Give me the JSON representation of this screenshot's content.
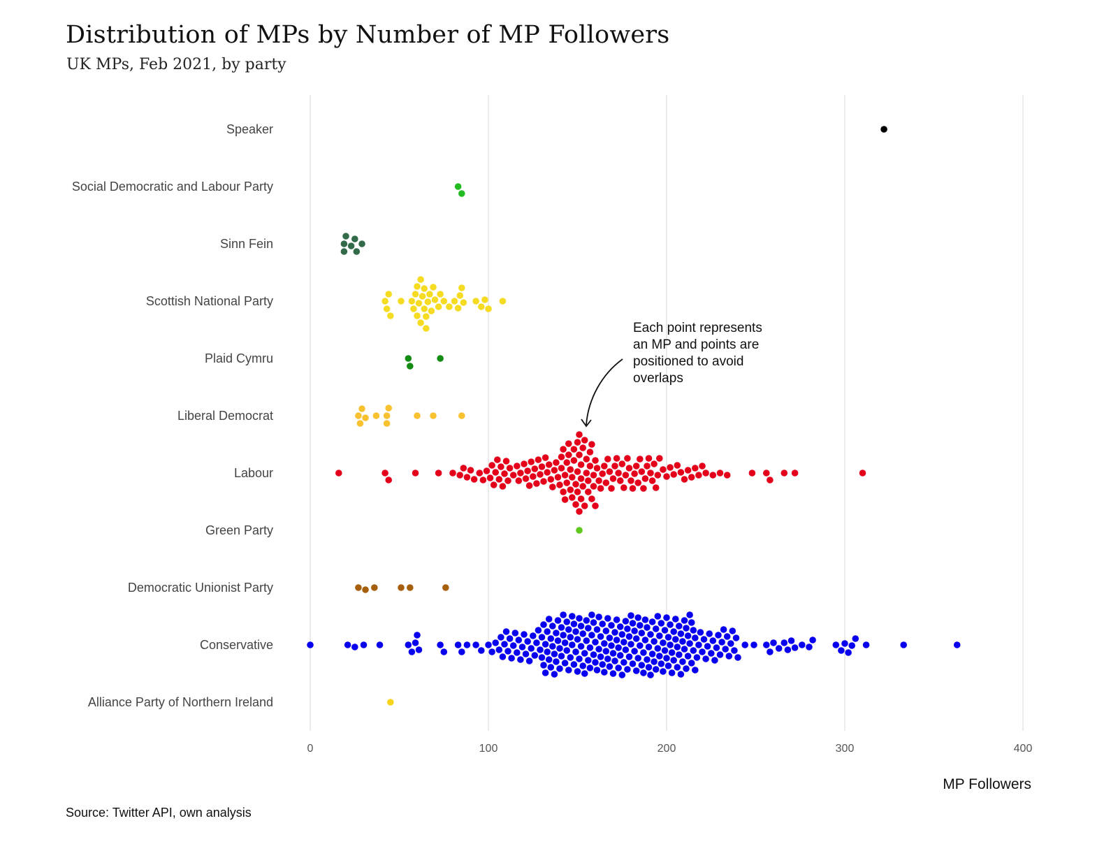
{
  "title": "Distribution of MPs by Number of MP Followers",
  "subtitle": "UK MPs, Feb 2021, by party",
  "source": "Source: Twitter API, own analysis",
  "annotation": [
    "Each point represents",
    "an MP and points are",
    "positioned to avoid",
    "overlaps"
  ],
  "chart_data": {
    "type": "scatter",
    "title": "Distribution of MPs by Number of MP Followers",
    "subtitle": "UK MPs, Feb 2021, by party",
    "xlabel": "MP Followers",
    "ylabel": "",
    "xlim": [
      0,
      400
    ],
    "xticks": [
      0,
      100,
      200,
      300,
      400
    ],
    "grid": "vertical",
    "categories": [
      "Speaker",
      "Social Democratic and Labour Party",
      "Sinn Fein",
      "Scottish National Party",
      "Plaid Cymru",
      "Liberal Democrat",
      "Labour",
      "Green Party",
      "Democratic Unionist Party",
      "Conservative",
      "Alliance Party of Northern Ireland"
    ],
    "series": [
      {
        "category": "Speaker",
        "color": "#000000",
        "values": [
          322
        ]
      },
      {
        "category": "Social Democratic and Labour Party",
        "color": "#22bb22",
        "values": [
          83,
          85
        ]
      },
      {
        "category": "Sinn Fein",
        "color": "#326a4a",
        "values": [
          19,
          19,
          20,
          23,
          25,
          26,
          29
        ]
      },
      {
        "category": "Scottish National Party",
        "color": "#f5dc23",
        "values": [
          42,
          43,
          44,
          45,
          51,
          57,
          58,
          59,
          60,
          60,
          61,
          62,
          62,
          63,
          64,
          64,
          65,
          65,
          66,
          67,
          68,
          69,
          70,
          72,
          73,
          75,
          78,
          81,
          83,
          84,
          85,
          86,
          93,
          96,
          98,
          100,
          108
        ]
      },
      {
        "category": "Plaid Cymru",
        "color": "#148c14",
        "values": [
          55,
          56,
          73
        ]
      },
      {
        "category": "Liberal Democrat",
        "color": "#f8c130",
        "values": [
          27,
          28,
          29,
          31,
          37,
          43,
          43,
          44,
          60,
          69,
          85
        ]
      },
      {
        "category": "Labour",
        "color": "#e4001a",
        "values": [
          16,
          42,
          44,
          59,
          72,
          80,
          84,
          86,
          88,
          90,
          92,
          95,
          97,
          99,
          101,
          102,
          103,
          104,
          105,
          106,
          107,
          108,
          109,
          110,
          111,
          112,
          114,
          116,
          117,
          118,
          120,
          121,
          122,
          123,
          124,
          125,
          126,
          127,
          128,
          129,
          130,
          131,
          132,
          133,
          134,
          135,
          136,
          137,
          138,
          139,
          140,
          141,
          141,
          142,
          142,
          143,
          143,
          144,
          144,
          145,
          145,
          146,
          146,
          147,
          147,
          148,
          148,
          149,
          149,
          150,
          150,
          150,
          151,
          151,
          151,
          152,
          152,
          152,
          153,
          153,
          154,
          154,
          155,
          155,
          156,
          156,
          157,
          157,
          158,
          158,
          159,
          159,
          160,
          160,
          161,
          162,
          163,
          164,
          165,
          166,
          167,
          168,
          169,
          170,
          171,
          172,
          173,
          174,
          175,
          176,
          177,
          178,
          179,
          180,
          181,
          182,
          183,
          184,
          185,
          186,
          187,
          188,
          189,
          190,
          191,
          192,
          193,
          194,
          195,
          196,
          198,
          200,
          202,
          204,
          206,
          208,
          210,
          212,
          214,
          216,
          218,
          220,
          222,
          226,
          230,
          234,
          248,
          256,
          258,
          266,
          272,
          310
        ]
      },
      {
        "category": "Green Party",
        "color": "#5fc81e",
        "values": [
          151
        ]
      },
      {
        "category": "Democratic Unionist Party",
        "color": "#a65f0c",
        "values": [
          27,
          31,
          36,
          51,
          56,
          76
        ]
      },
      {
        "category": "Conservative",
        "color": "#0a00f0",
        "values": [
          0,
          21,
          25,
          30,
          39,
          55,
          57,
          59,
          60,
          61,
          73,
          75,
          83,
          85,
          88,
          93,
          96,
          100,
          102,
          104,
          106,
          107,
          108,
          109,
          110,
          111,
          112,
          113,
          114,
          115,
          116,
          117,
          118,
          119,
          120,
          121,
          122,
          123,
          124,
          125,
          126,
          127,
          128,
          129,
          130,
          130,
          131,
          131,
          132,
          132,
          133,
          133,
          134,
          134,
          135,
          135,
          136,
          136,
          137,
          137,
          138,
          138,
          139,
          139,
          140,
          140,
          141,
          141,
          142,
          142,
          143,
          143,
          144,
          144,
          145,
          145,
          146,
          146,
          147,
          147,
          148,
          148,
          149,
          149,
          150,
          150,
          151,
          151,
          152,
          152,
          153,
          153,
          154,
          154,
          155,
          155,
          156,
          156,
          157,
          157,
          158,
          158,
          159,
          159,
          160,
          160,
          161,
          161,
          162,
          162,
          163,
          163,
          164,
          164,
          165,
          165,
          166,
          166,
          167,
          167,
          168,
          168,
          169,
          169,
          170,
          170,
          171,
          171,
          172,
          172,
          173,
          173,
          174,
          174,
          175,
          175,
          176,
          176,
          177,
          177,
          178,
          178,
          179,
          179,
          180,
          180,
          181,
          181,
          182,
          182,
          183,
          183,
          184,
          184,
          185,
          185,
          186,
          186,
          187,
          187,
          188,
          188,
          189,
          189,
          190,
          190,
          191,
          191,
          192,
          192,
          193,
          193,
          194,
          194,
          195,
          195,
          196,
          196,
          197,
          197,
          198,
          198,
          199,
          199,
          200,
          200,
          201,
          201,
          202,
          202,
          203,
          203,
          204,
          204,
          205,
          205,
          206,
          206,
          207,
          207,
          208,
          208,
          209,
          209,
          210,
          210,
          211,
          211,
          212,
          212,
          213,
          213,
          214,
          214,
          215,
          215,
          216,
          216,
          217,
          218,
          219,
          220,
          221,
          222,
          223,
          224,
          225,
          226,
          227,
          228,
          229,
          230,
          231,
          232,
          233,
          234,
          235,
          236,
          237,
          238,
          239,
          240,
          244,
          249,
          256,
          258,
          260,
          263,
          266,
          268,
          270,
          272,
          276,
          280,
          282,
          295,
          298,
          300,
          302,
          304,
          306,
          312,
          333,
          363
        ]
      },
      {
        "category": "Alliance Party of Northern Ireland",
        "color": "#f6d41a",
        "values": [
          45
        ]
      }
    ],
    "annotation": "Each point represents an MP and points are positioned to avoid overlaps",
    "source": "Source: Twitter API, own analysis"
  }
}
